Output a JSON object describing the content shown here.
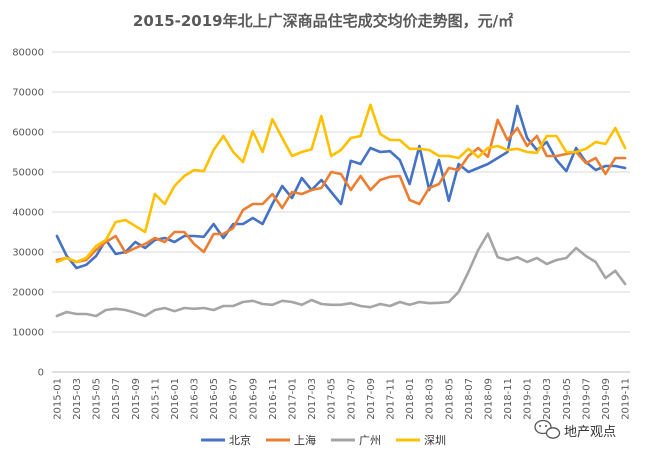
{
  "chart_data": {
    "type": "line",
    "title": "2015-2019年北上广深商品住宅成交均价走势图，元/㎡",
    "xlabel": "",
    "ylabel": "",
    "ylim": [
      0,
      80000
    ],
    "yticks": [
      "0",
      "10000",
      "20000",
      "30000",
      "40000",
      "50000",
      "60000",
      "70000",
      "80000"
    ],
    "ytick_values": [
      0,
      10000,
      20000,
      30000,
      40000,
      50000,
      60000,
      70000,
      80000
    ],
    "x": [
      "2015-01",
      "2015-02",
      "2015-03",
      "2015-04",
      "2015-05",
      "2015-06",
      "2015-07",
      "2015-08",
      "2015-09",
      "2015-10",
      "2015-11",
      "2015-12",
      "2016-01",
      "2016-02",
      "2016-03",
      "2016-04",
      "2016-05",
      "2016-06",
      "2016-07",
      "2016-08",
      "2016-09",
      "2016-10",
      "2016-11",
      "2016-12",
      "2017-01",
      "2017-02",
      "2017-03",
      "2017-04",
      "2017-05",
      "2017-06",
      "2017-07",
      "2017-08",
      "2017-09",
      "2017-10",
      "2017-11",
      "2017-12",
      "2018-01",
      "2018-02",
      "2018-03",
      "2018-04",
      "2018-05",
      "2018-06",
      "2018-07",
      "2018-08",
      "2018-09",
      "2018-10",
      "2018-11",
      "2018-12",
      "2019-01",
      "2019-02",
      "2019-03",
      "2019-04",
      "2019-05",
      "2019-06",
      "2019-07",
      "2019-08",
      "2019-09",
      "2019-10",
      "2019-11"
    ],
    "xtick_labels": [
      "2015-01",
      "2015-03",
      "2015-05",
      "2015-07",
      "2015-09",
      "2015-11",
      "2016-01",
      "2016-03",
      "2016-05",
      "2016-07",
      "2016-09",
      "2016-11",
      "2017-01",
      "2017-03",
      "2017-05",
      "2017-07",
      "2017-09",
      "2017-11",
      "2018-01",
      "2018-03",
      "2018-05",
      "2018-07",
      "2018-09",
      "2018-11",
      "2019-01",
      "2019-03",
      "2019-05",
      "2019-07",
      "2019-09",
      "2019-11"
    ],
    "grid": true,
    "legend_position": "bottom",
    "series": [
      {
        "name": "北京",
        "color": "#4472C4",
        "values": [
          34000,
          29000,
          26000,
          26800,
          29000,
          33000,
          29500,
          30000,
          32500,
          31000,
          33000,
          33500,
          32500,
          34000,
          34000,
          33800,
          37000,
          33500,
          37000,
          37000,
          38500,
          37000,
          42000,
          46500,
          43500,
          48500,
          45500,
          48000,
          45000,
          42000,
          52800,
          52000,
          56000,
          55000,
          55200,
          53000,
          47000,
          56500,
          45500,
          53000,
          42800,
          52000,
          50000,
          51000,
          52000,
          53500,
          55000,
          66500,
          58500,
          55500,
          57500,
          53000,
          50200,
          56000,
          52500,
          50500,
          51500,
          51500,
          51000
        ]
      },
      {
        "name": "上海",
        "color": "#ED7D31",
        "values": [
          28000,
          28500,
          27500,
          28000,
          30500,
          32500,
          34000,
          29800,
          31000,
          32000,
          33500,
          32500,
          35000,
          35000,
          32000,
          30000,
          34500,
          34500,
          36000,
          40500,
          42000,
          42000,
          44500,
          41000,
          45000,
          44500,
          45500,
          46000,
          50000,
          49500,
          45500,
          49000,
          45500,
          48000,
          48800,
          49000,
          43000,
          42000,
          46000,
          47000,
          51000,
          50500,
          54000,
          56000,
          53800,
          63000,
          58000,
          61000,
          56500,
          59000,
          54000,
          54000,
          54500,
          55000,
          52200,
          53500,
          49500,
          53500,
          53500
        ]
      },
      {
        "name": "广州",
        "color": "#A5A5A5",
        "values": [
          14000,
          15000,
          14500,
          14500,
          14000,
          15500,
          15800,
          15500,
          14800,
          14000,
          15500,
          16000,
          15200,
          16000,
          15800,
          16000,
          15500,
          16500,
          16500,
          17500,
          17800,
          17000,
          16800,
          17800,
          17500,
          16800,
          18000,
          17000,
          16800,
          16800,
          17200,
          16500,
          16200,
          17000,
          16500,
          17500,
          16800,
          17500,
          17200,
          17300,
          17500,
          20000,
          25000,
          30500,
          34600,
          28700,
          28000,
          28700,
          27500,
          28500,
          27000,
          28000,
          28500,
          31000,
          29000,
          27500,
          23500,
          25300,
          22000
        ]
      },
      {
        "name": "深圳",
        "color": "#FFC000",
        "values": [
          27500,
          28500,
          27500,
          28500,
          31500,
          33000,
          37500,
          38000,
          36500,
          35000,
          44500,
          42000,
          46500,
          49000,
          50500,
          50200,
          55500,
          59000,
          55000,
          52500,
          60200,
          55000,
          63200,
          58500,
          54000,
          55000,
          55700,
          64000,
          54000,
          55500,
          58500,
          59000,
          66800,
          59500,
          58000,
          58000,
          55800,
          55800,
          55500,
          54000,
          54000,
          53500,
          55800,
          53700,
          56000,
          56500,
          55500,
          55800,
          55000,
          54800,
          59000,
          59000,
          55000,
          55000,
          55800,
          57500,
          57000,
          61000,
          56000
        ]
      }
    ]
  },
  "watermark": {
    "text": "地产观点",
    "icon": "wechat-icon"
  }
}
